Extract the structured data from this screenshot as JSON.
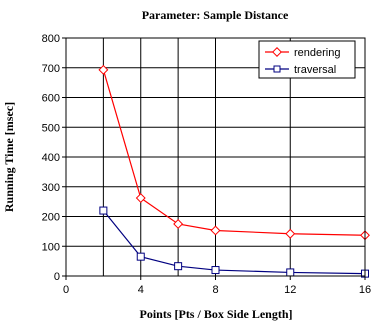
{
  "chart_data": {
    "type": "line",
    "title": "Parameter: Sample Distance",
    "xlabel": "Points [Pts / Box Side Length]",
    "ylabel": "Running Time [msec]",
    "xlim": [
      0,
      16
    ],
    "ylim": [
      0,
      800
    ],
    "xticks": [
      0,
      4,
      8,
      12,
      16
    ],
    "yticks": [
      0,
      100,
      200,
      300,
      400,
      500,
      600,
      700,
      800
    ],
    "x_gridlines": [
      2,
      4,
      6,
      8,
      12,
      16
    ],
    "grid": true,
    "legend_position": "top-right",
    "series": [
      {
        "name": "rendering",
        "color": "#ff0000",
        "marker": "diamond",
        "x": [
          2,
          4,
          6,
          8,
          12,
          16
        ],
        "y": [
          693,
          262,
          175,
          153,
          142,
          137
        ]
      },
      {
        "name": "traversal",
        "color": "#000080",
        "marker": "square",
        "x": [
          2,
          4,
          6,
          8,
          12,
          16
        ],
        "y": [
          220,
          65,
          33,
          20,
          12,
          8
        ]
      }
    ]
  }
}
